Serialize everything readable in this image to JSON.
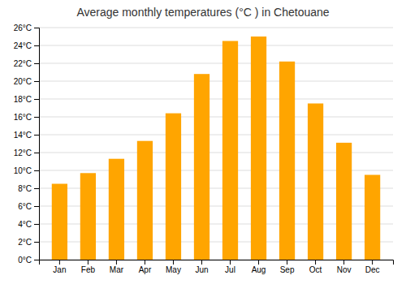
{
  "chart_data": {
    "type": "bar",
    "title": "Average monthly temperatures (°C ) in Chetouane",
    "categories": [
      "Jan",
      "Feb",
      "Mar",
      "Apr",
      "May",
      "Jun",
      "Jul",
      "Aug",
      "Sep",
      "Oct",
      "Nov",
      "Dec"
    ],
    "values": [
      8.5,
      9.7,
      11.3,
      13.3,
      16.4,
      20.8,
      24.5,
      25.0,
      22.2,
      17.5,
      13.1,
      9.5
    ],
    "color": "#FFA500",
    "ylim": [
      0,
      26
    ],
    "yticks": [
      {
        "value": 0,
        "label": "0°C"
      },
      {
        "value": 2,
        "label": "2°C"
      },
      {
        "value": 4,
        "label": "4°C"
      },
      {
        "value": 6,
        "label": "6°C"
      },
      {
        "value": 8,
        "label": "8°C"
      },
      {
        "value": 10,
        "label": "10°C"
      },
      {
        "value": 12,
        "label": "12°C"
      },
      {
        "value": 14,
        "label": "14°C"
      },
      {
        "value": 16,
        "label": "16°C"
      },
      {
        "value": 18,
        "label": "18°C"
      },
      {
        "value": 20,
        "label": "20°C"
      },
      {
        "value": 22,
        "label": "22°C"
      },
      {
        "value": 24,
        "label": "24°C"
      },
      {
        "value": 26,
        "label": "26°C"
      }
    ],
    "grid": true
  }
}
